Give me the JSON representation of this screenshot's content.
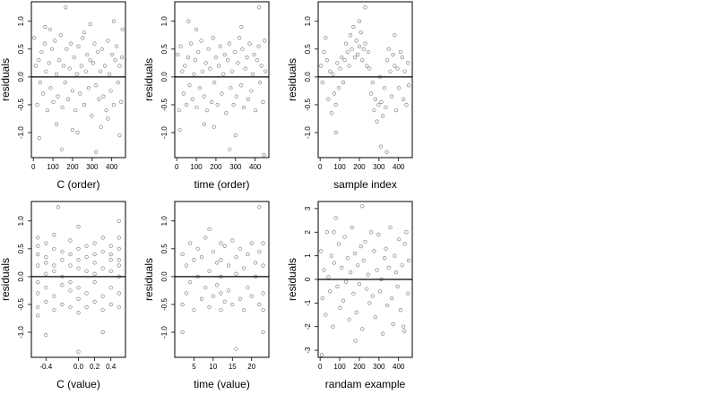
{
  "chart_data": [
    {
      "type": "scatter",
      "xlabel": "C (order)",
      "ylabel": "residuals",
      "xlim": [
        -10,
        470
      ],
      "ylim": [
        -1.45,
        1.35
      ],
      "xticks": [
        0,
        100,
        200,
        300,
        400
      ],
      "yticks": [
        -1.0,
        -0.5,
        0.0,
        0.5,
        1.0
      ],
      "ytick_labels": [
        "-1.0",
        "-0.5",
        "0.0",
        "0.5",
        "1.0"
      ],
      "hline": 0,
      "series": [
        {
          "x": [
            5,
            12,
            20,
            28,
            35,
            42,
            50,
            58,
            65,
            72,
            80,
            88,
            95,
            102,
            110,
            118,
            125,
            132,
            140,
            148,
            155,
            162,
            170,
            178,
            185,
            192,
            200,
            208,
            215,
            222,
            230,
            238,
            245,
            252,
            260,
            268,
            275,
            282,
            290,
            298,
            305,
            312,
            320,
            328,
            335,
            342,
            350,
            358,
            365,
            372,
            380,
            388,
            395,
            402,
            410,
            418,
            425,
            432,
            440,
            448,
            452,
            60,
            118,
            165,
            225,
            290,
            345,
            410,
            30,
            145,
            260,
            380,
            455,
            85,
            200,
            320,
            440
          ],
          "y": [
            0.7,
            0.2,
            -0.5,
            0.3,
            -0.1,
            0.45,
            -0.3,
            0.6,
            0.1,
            -0.6,
            0.25,
            -0.2,
            0.5,
            -0.45,
            0.65,
            0.05,
            -0.35,
            0.3,
            0.75,
            -0.55,
            0.2,
            -0.1,
            0.5,
            -0.4,
            0.15,
            0.6,
            -0.25,
            0.35,
            -0.6,
            0.05,
            0.55,
            -0.3,
            0.2,
            0.7,
            -0.5,
            0.1,
            0.4,
            -0.2,
            0.3,
            -0.7,
            0.25,
            0.6,
            -0.15,
            0.45,
            -0.4,
            0.1,
            0.5,
            -0.35,
            0.2,
            -0.6,
            0.65,
            0.05,
            -0.25,
            0.4,
            -0.5,
            0.3,
            0.55,
            -0.1,
            0.2,
            -0.45,
            0.35,
            0.9,
            -0.85,
            1.25,
            -1.0,
            0.95,
            -0.9,
            1.0,
            -1.1,
            -1.3,
            0.8,
            -0.75,
            0.85,
            0.85,
            -0.95,
            -1.35,
            -1.05
          ]
        }
      ]
    },
    {
      "type": "scatter",
      "xlabel": "time (order)",
      "ylabel": "residuals",
      "xlim": [
        -10,
        470
      ],
      "ylim": [
        -1.45,
        1.35
      ],
      "xticks": [
        0,
        100,
        200,
        300,
        400
      ],
      "yticks": [
        -1.0,
        -0.5,
        0.0,
        0.5,
        1.0
      ],
      "ytick_labels": [
        "-1.0",
        "-0.5",
        "0.0",
        "0.5",
        "1.0"
      ],
      "hline": 0,
      "series": [
        {
          "x": [
            5,
            12,
            20,
            28,
            35,
            42,
            50,
            58,
            65,
            72,
            80,
            88,
            95,
            102,
            110,
            118,
            125,
            132,
            140,
            148,
            155,
            162,
            170,
            178,
            185,
            192,
            200,
            208,
            215,
            222,
            230,
            238,
            245,
            252,
            260,
            268,
            275,
            282,
            290,
            298,
            305,
            312,
            320,
            328,
            335,
            342,
            350,
            358,
            365,
            372,
            380,
            388,
            395,
            402,
            410,
            418,
            425,
            432,
            440,
            448,
            452,
            15,
            60,
            140,
            270,
            330,
            420,
            445,
            100,
            190,
            300
          ],
          "y": [
            0.4,
            -0.6,
            0.55,
            0.1,
            -0.3,
            0.2,
            -0.5,
            0.35,
            -0.15,
            0.6,
            -0.4,
            0.05,
            0.3,
            -0.55,
            0.45,
            -0.2,
            0.65,
            0.1,
            -0.35,
            0.25,
            -0.6,
            0.5,
            0.15,
            -0.45,
            0.7,
            -0.1,
            0.35,
            -0.5,
            0.2,
            0.55,
            -0.3,
            0.05,
            0.4,
            -0.65,
            0.3,
            0.6,
            -0.2,
            0.1,
            -0.5,
            0.45,
            -0.35,
            0.25,
            0.7,
            -0.15,
            0.5,
            -0.55,
            0.15,
            0.35,
            -0.4,
            0.6,
            -0.25,
            0.05,
            0.4,
            -0.6,
            0.3,
            0.55,
            -0.1,
            0.2,
            -0.45,
            0.65,
            0.1,
            -0.95,
            1.0,
            -0.85,
            -1.3,
            0.9,
            1.25,
            -1.4,
            0.85,
            -0.9,
            -1.05
          ]
        }
      ]
    },
    {
      "type": "scatter",
      "xlabel": "sample index",
      "ylabel": "residuals",
      "xlim": [
        -10,
        470
      ],
      "ylim": [
        -1.45,
        1.35
      ],
      "xticks": [
        0,
        100,
        200,
        300,
        400
      ],
      "yticks": [
        -1.0,
        -0.5,
        0.0,
        0.5,
        1.0
      ],
      "ytick_labels": [
        "-1.0",
        "-0.5",
        "0.0",
        "0.5",
        "1.0"
      ],
      "hline": 0,
      "series": [
        {
          "x": [
            5,
            12,
            20,
            28,
            35,
            42,
            50,
            58,
            65,
            72,
            80,
            88,
            95,
            102,
            110,
            118,
            125,
            132,
            140,
            148,
            155,
            162,
            170,
            178,
            185,
            192,
            200,
            208,
            215,
            222,
            230,
            238,
            245,
            252,
            260,
            268,
            275,
            282,
            290,
            298,
            305,
            312,
            320,
            328,
            335,
            342,
            350,
            358,
            365,
            372,
            380,
            388,
            395,
            402,
            410,
            418,
            425,
            432,
            440,
            448,
            452,
            380,
            310,
            80,
            340,
            200,
            230
          ],
          "y": [
            0.2,
            -0.1,
            0.45,
            0.7,
            0.3,
            -0.4,
            0.1,
            -0.65,
            0.05,
            -0.3,
            -0.5,
            0.25,
            -0.2,
            0.15,
            0.35,
            -0.1,
            0.3,
            0.6,
            0.45,
            0.2,
            0.75,
            0.5,
            0.9,
            0.35,
            0.65,
            0.4,
            0.55,
            0.8,
            0.3,
            0.5,
            0.6,
            0.2,
            0.45,
            0.15,
            -0.3,
            -0.1,
            -0.6,
            -0.4,
            -0.8,
            -0.5,
            0.0,
            -0.45,
            -0.7,
            -0.2,
            -0.55,
            0.3,
            0.5,
            0.1,
            -0.35,
            0.4,
            0.2,
            -0.6,
            0.15,
            -0.2,
            0.45,
            0.35,
            -0.4,
            0.1,
            -0.5,
            0.25,
            -0.15,
            0.75,
            -1.25,
            -1.0,
            -1.35,
            1.0,
            1.25
          ]
        }
      ]
    },
    {
      "type": "scatter",
      "xlabel": "C (value)",
      "ylabel": "residuals",
      "xlim": [
        -0.58,
        0.58
      ],
      "ylim": [
        -1.45,
        1.35
      ],
      "xticks": [
        -0.4,
        0.0,
        0.2,
        0.4
      ],
      "xtick_labels": [
        "-0.4",
        "0.0",
        "0.2",
        "0.4"
      ],
      "yticks": [
        -1.0,
        -0.5,
        0.0,
        0.5,
        1.0
      ],
      "ytick_labels": [
        "-1.0",
        "-0.5",
        "0.0",
        "0.5",
        "1.0"
      ],
      "hline": 0,
      "series": [
        {
          "x": [
            -0.5,
            -0.5,
            -0.5,
            -0.5,
            -0.5,
            -0.5,
            -0.5,
            -0.5,
            -0.4,
            -0.4,
            -0.4,
            -0.4,
            -0.4,
            -0.4,
            -0.3,
            -0.3,
            -0.3,
            -0.3,
            -0.3,
            -0.3,
            -0.2,
            -0.2,
            -0.2,
            -0.2,
            -0.2,
            -0.1,
            -0.1,
            -0.1,
            -0.1,
            -0.1,
            -0.1,
            0.0,
            0.0,
            0.0,
            0.0,
            0.0,
            0.0,
            0.0,
            0.1,
            0.1,
            0.1,
            0.1,
            0.1,
            0.2,
            0.2,
            0.2,
            0.2,
            0.2,
            0.2,
            0.3,
            0.3,
            0.3,
            0.3,
            0.3,
            0.4,
            0.4,
            0.4,
            0.4,
            0.4,
            0.4,
            0.5,
            0.5,
            0.5,
            0.5,
            0.5,
            0.5,
            0.5,
            -0.25,
            0.0,
            0.3,
            -0.4,
            0.5
          ],
          "y": [
            0.7,
            0.4,
            0.2,
            -0.1,
            -0.3,
            -0.55,
            0.55,
            -0.7,
            0.6,
            0.25,
            -0.2,
            -0.45,
            0.05,
            0.35,
            0.5,
            0.1,
            -0.35,
            -0.6,
            0.75,
            0.2,
            0.45,
            -0.15,
            -0.5,
            0.3,
            0.0,
            0.65,
            0.2,
            -0.25,
            -0.55,
            0.4,
            -0.1,
            0.9,
            0.5,
            0.15,
            -0.2,
            -0.4,
            -0.65,
            0.3,
            0.55,
            0.1,
            -0.3,
            -0.55,
            0.35,
            0.6,
            0.25,
            -0.1,
            -0.45,
            0.4,
            0.05,
            0.45,
            0.15,
            -0.35,
            -0.6,
            0.7,
            0.55,
            0.3,
            0.1,
            -0.2,
            -0.5,
            0.4,
            0.5,
            0.3,
            0.2,
            0.0,
            -0.3,
            -0.55,
            0.7,
            1.25,
            -1.35,
            -1.0,
            -1.05,
            1.0
          ]
        }
      ]
    },
    {
      "type": "scatter",
      "xlabel": "time (value)",
      "ylabel": "residuals",
      "xlim": [
        0,
        24.5
      ],
      "ylim": [
        -1.45,
        1.35
      ],
      "xticks": [
        5,
        10,
        15,
        20
      ],
      "xtick_labels": [
        "5",
        "10",
        "15",
        "20"
      ],
      "yticks": [
        -1.0,
        -0.5,
        0.0,
        0.5,
        1.0
      ],
      "ytick_labels": [
        "-1.0",
        "-0.5",
        "0.0",
        "0.5",
        "1.0"
      ],
      "hline": 0,
      "series": [
        {
          "x": [
            2,
            2,
            3,
            3,
            4,
            4,
            5,
            5,
            6,
            6,
            7,
            7,
            8,
            8,
            9,
            9,
            10,
            10,
            11,
            11,
            12,
            12,
            12,
            12,
            12,
            13,
            13,
            14,
            14,
            15,
            15,
            16,
            16,
            17,
            17,
            18,
            18,
            19,
            19,
            20,
            20,
            21,
            21,
            22,
            22,
            23,
            23,
            23,
            23,
            2,
            9,
            16,
            22,
            23
          ],
          "y": [
            0.4,
            -0.5,
            0.2,
            -0.3,
            0.6,
            -0.1,
            0.3,
            -0.6,
            0.5,
            0.0,
            -0.4,
            0.35,
            0.7,
            -0.2,
            0.1,
            -0.55,
            0.45,
            -0.35,
            0.25,
            -0.15,
            0.6,
            0.3,
            0.0,
            -0.3,
            -0.6,
            0.55,
            -0.45,
            0.2,
            -0.25,
            0.65,
            -0.5,
            0.35,
            0.05,
            -0.4,
            0.5,
            0.15,
            -0.6,
            0.4,
            -0.2,
            0.6,
            -0.35,
            0.25,
            0.0,
            -0.5,
            0.45,
            0.6,
            0.2,
            -0.3,
            -0.6,
            -1.0,
            0.85,
            -1.3,
            1.25,
            -1.0
          ]
        }
      ]
    },
    {
      "type": "scatter",
      "xlabel": "randam example",
      "ylabel": "residuals",
      "xlim": [
        -10,
        470
      ],
      "ylim": [
        -3.3,
        3.3
      ],
      "xticks": [
        0,
        100,
        200,
        300,
        400
      ],
      "yticks": [
        -3,
        -2,
        -1,
        0,
        1,
        2,
        3
      ],
      "ytick_labels": [
        "-3",
        "-2",
        "-1",
        "0",
        "1",
        "2",
        "3"
      ],
      "hline": 0,
      "series": [
        {
          "x": [
            5,
            12,
            20,
            28,
            35,
            42,
            50,
            58,
            65,
            72,
            80,
            88,
            95,
            102,
            110,
            118,
            125,
            132,
            140,
            148,
            155,
            162,
            170,
            178,
            185,
            192,
            200,
            208,
            215,
            222,
            230,
            238,
            245,
            252,
            260,
            268,
            275,
            282,
            290,
            298,
            305,
            312,
            320,
            328,
            335,
            342,
            350,
            358,
            365,
            372,
            380,
            388,
            395,
            402,
            410,
            418,
            425,
            432,
            440,
            448,
            452,
            8,
            70,
            180,
            215,
            430
          ],
          "y": [
            1.2,
            -0.8,
            0.4,
            -1.5,
            2.0,
            0.1,
            -0.5,
            1.0,
            -2.0,
            0.7,
            2.6,
            -0.3,
            1.5,
            -1.2,
            0.5,
            -0.9,
            1.8,
            -0.1,
            0.9,
            -1.7,
            0.3,
            2.2,
            -0.6,
            1.1,
            -1.4,
            0.6,
            -0.2,
            1.4,
            -2.1,
            0.8,
            1.6,
            -0.4,
            0.2,
            -1.0,
            2.0,
            -0.7,
            1.2,
            -1.6,
            0.4,
            1.9,
            -0.5,
            0.0,
            -2.3,
            0.9,
            1.3,
            -1.1,
            0.5,
            2.2,
            -0.8,
            -1.9,
            1.0,
            0.3,
            -0.3,
            1.7,
            -1.3,
            0.6,
            -2.0,
            1.5,
            2.0,
            -0.6,
            0.8,
            -3.2,
            2.0,
            -2.6,
            3.1,
            -2.2
          ]
        }
      ]
    }
  ]
}
